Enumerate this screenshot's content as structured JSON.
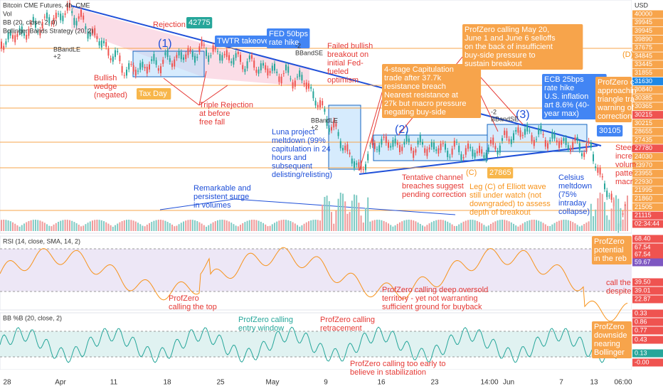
{
  "header": {
    "symbol": "Bitcoin CME Futures, 4h, CME",
    "vol": "Vol",
    "bb": "BB (20, close, 2, 0)",
    "strategy": "Bollinger Bands Strategy (20, 2)",
    "currency": "USD"
  },
  "price_axis": [
    "40000",
    "39945",
    "39945",
    "39890",
    "37675",
    "34845",
    "33445",
    "31855",
    "31630",
    "30840",
    "30385",
    "30365",
    "30215",
    "30215",
    "28655",
    "27435",
    "27780",
    "24030",
    "23970",
    "23955",
    "22930",
    "21995",
    "21860",
    "21505",
    "21115",
    "02:34:44"
  ],
  "rsi": {
    "title": "RSI (14, close, SMA, 14, 2)",
    "axis": [
      "68.40",
      "67.54",
      "67.54",
      "59.67",
      "39.50",
      "39.01",
      "22.87"
    ]
  },
  "bbpb": {
    "title": "BB %B (20, close, 2)",
    "axis": [
      "0.33",
      "0.86",
      "0.77",
      "0.43",
      "0.13",
      "-0.00"
    ]
  },
  "time_axis": [
    "28",
    "Apr",
    "11",
    "18",
    "25",
    "May",
    "9",
    "16",
    "23",
    "14:00",
    "Jun",
    "7",
    "13",
    "06:00"
  ],
  "annotations": [
    {
      "lines": [
        "Rejection"
      ]
    },
    {
      "lines": [
        "42775"
      ]
    },
    {
      "lines": [
        "TWTR takeover"
      ]
    },
    {
      "lines": [
        "FED 50bps",
        "rate hike"
      ]
    },
    {
      "lines": [
        "Failed bullish",
        "breakout on",
        "initial Fed-",
        "fueled",
        "optimism"
      ]
    },
    {
      "lines": [
        "(1)"
      ]
    },
    {
      "lines": [
        "Bullish",
        "wedge",
        "(negated)"
      ]
    },
    {
      "lines": [
        "Tax Day"
      ]
    },
    {
      "lines": [
        "Triple Rejection",
        "at before",
        "free fall"
      ]
    },
    {
      "lines": [
        "4-stage Capitulation",
        "trade after 37.7k",
        "resistance breach",
        "Nearest resistance at",
        "27k but macro pressure",
        "negating buy-side"
      ]
    },
    {
      "lines": [
        "ProfZero calling May 20,",
        "June 1 and June 6 selloffs",
        "on the back of insufficient",
        "buy-side pressure to",
        "sustain breakout"
      ]
    },
    {
      "lines": [
        "ECB 25bps",
        "rate hike",
        "U.S. inflation",
        "art 8.6% (40-",
        "year max)"
      ]
    },
    {
      "lines": [
        "ProfZero c",
        "approachin",
        "triangle tra",
        "warning of",
        "correction"
      ]
    },
    {
      "lines": [
        "Luna project",
        "meltdown (99%",
        "capitulation in 24",
        "hours and",
        "subsequent",
        "delisting/relisting)"
      ]
    },
    {
      "lines": [
        "(2)"
      ]
    },
    {
      "lines": [
        "(3)"
      ]
    },
    {
      "lines": [
        "Tentative channel",
        "breaches suggest",
        "pending correction"
      ]
    },
    {
      "lines": [
        "(C)"
      ]
    },
    {
      "lines": [
        "27865"
      ]
    },
    {
      "lines": [
        "Leg (C) of Elliott wave",
        "still under watch (not",
        "downgraded) to assess",
        "depth of breakout"
      ]
    },
    {
      "lines": [
        "Celsius",
        "meltdown",
        "(75%",
        "intraday",
        "collapse)"
      ]
    },
    {
      "lines": [
        "Steep",
        "incre",
        "volum",
        "patte",
        "macr"
      ]
    },
    {
      "lines": [
        "Remarkable and",
        "persistent surge",
        "in volumes"
      ]
    },
    {
      "lines": [
        "(D)"
      ]
    },
    {
      "lines": [
        "BBandLE",
        "+2"
      ]
    },
    {
      "lines": [
        "-2",
        "BBandSE"
      ]
    },
    {
      "lines": [
        "BBandLE",
        "+2"
      ]
    },
    {
      "lines": [
        "-2",
        "BBandSE"
      ]
    },
    {
      "lines": [
        "30105"
      ]
    },
    {
      "lines": [
        "ProfZero",
        "calling the top"
      ]
    },
    {
      "lines": [
        "ProfZero calling deep oversold",
        "territory - yet not warranting",
        "sufficient ground for buyback"
      ]
    },
    {
      "lines": [
        "ProfZero",
        "potential",
        "in the reb"
      ]
    },
    {
      "lines": [
        "call the",
        "despite"
      ]
    },
    {
      "lines": [
        "ProfZero calling",
        "entry window"
      ]
    },
    {
      "lines": [
        "ProfZero calling",
        "retracement"
      ]
    },
    {
      "lines": [
        "ProfZero calling too early to",
        "believe in stabilization"
      ]
    },
    {
      "lines": [
        "ProfZero",
        "downside",
        "nearing",
        "Bollinger"
      ]
    }
  ]
}
